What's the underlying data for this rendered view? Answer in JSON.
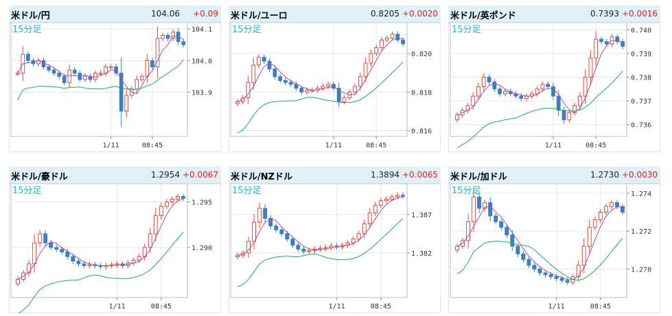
{
  "colors": {
    "up_candle": "#d84a3a",
    "down_candle": "#3c7fc0",
    "ma_short": "#b04aa8",
    "ma_long": "#18b04a",
    "change": "#e02020",
    "interval_label": "#2ab4d8",
    "header_bg": "#dff0f6"
  },
  "chart_data": [
    {
      "type": "candlestick",
      "pair": "米ドル/円",
      "price": "104.06",
      "change": "+0.09",
      "interval": "15分足",
      "yticks": [
        {
          "v": 104.1,
          "label": "104.1"
        },
        {
          "v": 104.0,
          "label": "104.0"
        },
        {
          "v": 103.9,
          "label": "103.9"
        }
      ],
      "ylim": [
        103.76,
        104.12
      ],
      "xticks": [
        {
          "i": 18,
          "label": "1/11"
        },
        {
          "i": 26,
          "label": "08:45"
        }
      ],
      "start": 103.96,
      "closes": [
        103.96,
        104.02,
        104.0,
        103.99,
        104.0,
        103.98,
        103.97,
        103.96,
        103.95,
        103.93,
        103.97,
        103.96,
        103.94,
        103.95,
        103.94,
        103.96,
        103.96,
        103.98,
        103.98,
        103.96,
        103.84,
        103.89,
        103.91,
        103.94,
        103.95,
        104.0,
        103.98,
        104.07,
        104.08,
        104.07,
        104.09,
        104.06,
        104.05
      ]
    },
    {
      "type": "candlestick",
      "pair": "米ドル/ユーロ",
      "price": "0.8205",
      "change": "+0.0020",
      "interval": "15分足",
      "yticks": [
        {
          "v": 0.82,
          "label": "0.820"
        },
        {
          "v": 0.818,
          "label": "0.818"
        },
        {
          "v": 0.816,
          "label": "0.816"
        }
      ],
      "ylim": [
        0.8157,
        0.8216
      ],
      "xticks": [
        {
          "i": 18,
          "label": "1/11"
        },
        {
          "i": 26,
          "label": "08:45"
        }
      ],
      "start": 0.8174,
      "closes": [
        0.8175,
        0.8177,
        0.8185,
        0.8194,
        0.8198,
        0.8196,
        0.8192,
        0.8188,
        0.8186,
        0.8185,
        0.8184,
        0.8182,
        0.818,
        0.8181,
        0.8181,
        0.8182,
        0.8183,
        0.8184,
        0.8182,
        0.8175,
        0.8177,
        0.818,
        0.8183,
        0.8188,
        0.8195,
        0.82,
        0.8203,
        0.8207,
        0.8208,
        0.821,
        0.8207,
        0.8205
      ]
    },
    {
      "type": "candlestick",
      "pair": "米ドル/英ポンド",
      "price": "0.7393",
      "change": "+0.0016",
      "interval": "15分足",
      "yticks": [
        {
          "v": 0.74,
          "label": "0.740"
        },
        {
          "v": 0.739,
          "label": "0.739"
        },
        {
          "v": 0.738,
          "label": "0.738"
        },
        {
          "v": 0.737,
          "label": "0.737"
        },
        {
          "v": 0.736,
          "label": "0.736"
        }
      ],
      "ylim": [
        0.7355,
        0.7403
      ],
      "xticks": [
        {
          "i": 18,
          "label": "1/11"
        },
        {
          "i": 26,
          "label": "08:45"
        }
      ],
      "start": 0.7362,
      "closes": [
        0.7364,
        0.7366,
        0.7368,
        0.7372,
        0.7376,
        0.738,
        0.7378,
        0.7375,
        0.7373,
        0.7374,
        0.7373,
        0.7372,
        0.7371,
        0.7372,
        0.7373,
        0.7375,
        0.7377,
        0.7376,
        0.7372,
        0.7366,
        0.7362,
        0.7365,
        0.7368,
        0.7372,
        0.738,
        0.7388,
        0.7396,
        0.7395,
        0.7394,
        0.7397,
        0.7395,
        0.7393
      ]
    },
    {
      "type": "candlestick",
      "pair": "米ドル/豪ドル",
      "price": "1.2954",
      "change": "+0.0067",
      "interval": "15分足",
      "yticks": [
        {
          "v": 1.295,
          "label": "1.295"
        },
        {
          "v": 1.29,
          "label": "1.290"
        }
      ],
      "ylim": [
        1.2845,
        1.297
      ],
      "xticks": [
        {
          "i": 18,
          "label": "1/11"
        },
        {
          "i": 26,
          "label": "08:45"
        }
      ],
      "start": 1.286,
      "closes": [
        1.2865,
        1.2872,
        1.2882,
        1.2905,
        1.2915,
        1.2905,
        1.29,
        1.2898,
        1.2895,
        1.289,
        1.2885,
        1.2882,
        1.288,
        1.2881,
        1.288,
        1.2879,
        1.288,
        1.2881,
        1.2882,
        1.288,
        1.2883,
        1.2886,
        1.289,
        1.29,
        1.2915,
        1.2935,
        1.2945,
        1.295,
        1.2953,
        1.2956,
        1.2954
      ]
    },
    {
      "type": "candlestick",
      "pair": "米ドル/NZドル",
      "price": "1.3894",
      "change": "+0.0065",
      "interval": "15分足",
      "yticks": [
        {
          "v": 1.387,
          "label": "1.387"
        },
        {
          "v": 1.382,
          "label": "1.382"
        }
      ],
      "ylim": [
        1.3762,
        1.391
      ],
      "xticks": [
        {
          "i": 18,
          "label": "1/11"
        },
        {
          "i": 26,
          "label": "08:45"
        }
      ],
      "start": 1.3815,
      "closes": [
        1.3817,
        1.382,
        1.3835,
        1.386,
        1.3878,
        1.3865,
        1.3855,
        1.385,
        1.3845,
        1.3838,
        1.383,
        1.3825,
        1.3822,
        1.3823,
        1.3825,
        1.3826,
        1.3827,
        1.3829,
        1.3828,
        1.383,
        1.3833,
        1.3838,
        1.3845,
        1.3858,
        1.3872,
        1.3882,
        1.3888,
        1.389,
        1.3893,
        1.3895,
        1.3894
      ]
    },
    {
      "type": "candlestick",
      "pair": "米ドル/加ドル",
      "price": "1.2730",
      "change": "+0.0030",
      "interval": "15分足",
      "yticks": [
        {
          "v": 1.274,
          "label": "1.274"
        },
        {
          "v": 1.272,
          "label": "1.272"
        },
        {
          "v": 1.27,
          "label": "1.270"
        }
      ],
      "ylim": [
        1.2685,
        1.2745
      ],
      "xticks": [
        {
          "i": 18,
          "label": "1/11"
        },
        {
          "i": 26,
          "label": "08:45"
        }
      ],
      "start": 1.271,
      "closes": [
        1.2712,
        1.2715,
        1.2725,
        1.2738,
        1.2732,
        1.2735,
        1.2728,
        1.2725,
        1.2722,
        1.2718,
        1.2712,
        1.2708,
        1.2705,
        1.2702,
        1.27,
        1.2698,
        1.2697,
        1.2696,
        1.2695,
        1.2694,
        1.2693,
        1.2696,
        1.2702,
        1.2712,
        1.2722,
        1.2726,
        1.273,
        1.2733,
        1.2735,
        1.2733,
        1.273
      ]
    }
  ]
}
